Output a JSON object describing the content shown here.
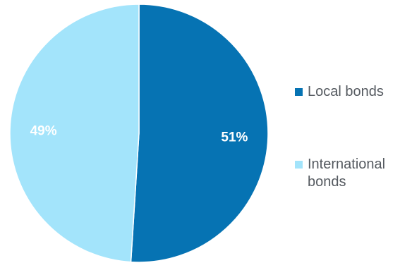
{
  "chart_data": {
    "type": "pie",
    "title": "",
    "slices": [
      {
        "label": "Local bonds",
        "value": 51,
        "display": "51%",
        "color": "#0673b3"
      },
      {
        "label": "International bonds",
        "value": 49,
        "display": "49%",
        "color": "#a3e4fb"
      }
    ],
    "start_angle_deg": 0,
    "direction": "clockwise",
    "legend_position": "right"
  },
  "legend": {
    "items": [
      {
        "label": "Local bonds",
        "color": "#0673b3"
      },
      {
        "label": "International bonds",
        "color": "#a3e4fb"
      }
    ]
  }
}
